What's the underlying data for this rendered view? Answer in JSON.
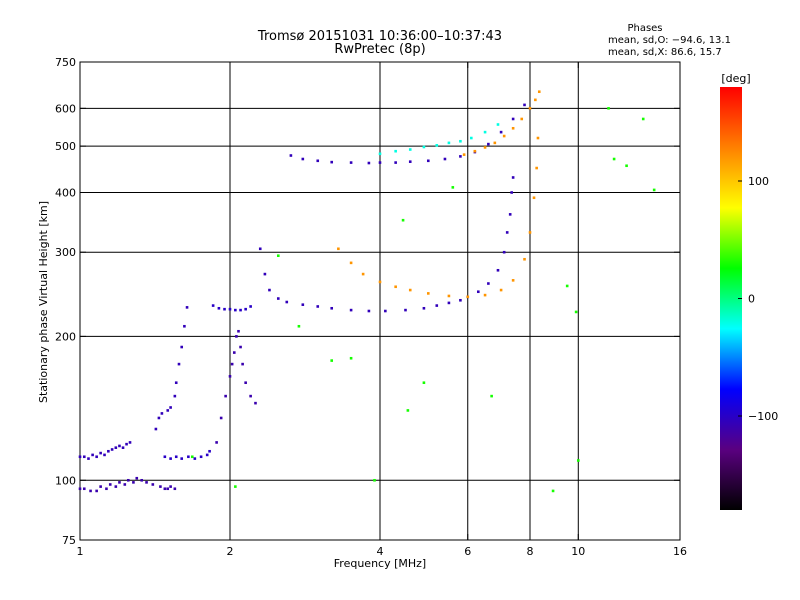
{
  "chart_data": {
    "type": "scatter",
    "title": "Tromsø 20151031 10:36:00–10:37:43",
    "subtitle": "RwPretec (8p)",
    "xlabel": "Frequency [MHz]",
    "ylabel": "Stationary phase Virtual Height [km]",
    "xscale": "log",
    "yscale": "log",
    "xlim": [
      1,
      16
    ],
    "ylim": [
      75,
      750
    ],
    "xticks": [
      1,
      2,
      4,
      6,
      8,
      10,
      16
    ],
    "xtick_labels": [
      "1",
      "2",
      "4",
      "6",
      "8",
      "10",
      "16"
    ],
    "xgrid": [
      2,
      4,
      6,
      8,
      10
    ],
    "yticks": [
      75,
      100,
      200,
      300,
      400,
      500,
      600,
      750
    ],
    "ytick_labels": [
      "75",
      "100",
      "200",
      "300",
      "400",
      "500",
      "600",
      "750"
    ],
    "ygrid": [
      100,
      200,
      300,
      400,
      500,
      600
    ],
    "grid": true,
    "stats": {
      "heading": "Phases",
      "line_o": "mean, sd,O: −94.6, 13.1",
      "line_x": "mean, sd,X:  86.6, 15.7"
    },
    "colorbar": {
      "label": "[deg]",
      "range": [
        -180,
        180
      ],
      "ticks": [
        100,
        0,
        -100
      ],
      "tick_labels": [
        "100",
        "0",
        "−100"
      ],
      "colors": [
        "#000000",
        "#5a0080",
        "#0000ff",
        "#00ffff",
        "#00ff00",
        "#ffff00",
        "#ff8000",
        "#ff0000"
      ]
    },
    "series": [
      {
        "phase": -110,
        "x": [
          1.0,
          1.02,
          1.05,
          1.08,
          1.1,
          1.13,
          1.15,
          1.18,
          1.2,
          1.23,
          1.25,
          1.28,
          1.3,
          1.33,
          1.36,
          1.4,
          1.45,
          1.48,
          1.5,
          1.52,
          1.55
        ],
        "y": [
          96,
          96,
          95,
          95,
          97,
          96,
          98,
          97,
          99,
          98,
          100,
          99,
          101,
          100,
          99,
          98,
          97,
          96,
          96,
          97,
          96
        ]
      },
      {
        "phase": -105,
        "x": [
          1.0,
          1.02,
          1.04,
          1.06,
          1.08,
          1.1,
          1.12,
          1.14,
          1.16,
          1.18,
          1.2,
          1.22,
          1.24,
          1.26
        ],
        "y": [
          112,
          112,
          111,
          113,
          112,
          114,
          113,
          115,
          116,
          117,
          118,
          117,
          119,
          120
        ]
      },
      {
        "phase": -100,
        "x": [
          1.48,
          1.52,
          1.56,
          1.6,
          1.65,
          1.7,
          1.75,
          1.8,
          1.82
        ],
        "y": [
          112,
          111,
          112,
          111,
          112,
          111,
          112,
          113,
          115
        ]
      },
      {
        "phase": -105,
        "x": [
          1.42,
          1.44,
          1.46,
          1.5,
          1.52,
          1.55,
          1.56,
          1.58,
          1.6,
          1.62,
          1.64
        ],
        "y": [
          128,
          135,
          138,
          140,
          142,
          150,
          160,
          175,
          190,
          210,
          230
        ]
      },
      {
        "phase": -110,
        "x": [
          1.88,
          1.92,
          1.96,
          2.0,
          2.02,
          2.04,
          2.06,
          2.08,
          2.1,
          2.12,
          2.15,
          2.2,
          2.25
        ],
        "y": [
          120,
          135,
          150,
          165,
          175,
          185,
          200,
          205,
          190,
          175,
          160,
          150,
          145
        ]
      },
      {
        "phase": -100,
        "x": [
          1.85,
          1.9,
          1.95,
          2.0,
          2.05,
          2.1,
          2.15,
          2.2
        ],
        "y": [
          232,
          229,
          228,
          228,
          227,
          227,
          228,
          231
        ]
      },
      {
        "phase": -105,
        "x": [
          2.3,
          2.35,
          2.4,
          2.5,
          2.6,
          2.8,
          3.0,
          3.2,
          3.5,
          3.8,
          4.1,
          4.5,
          4.9,
          5.2,
          5.5,
          5.8,
          6.0,
          6.3,
          6.6,
          6.9,
          7.1,
          7.2,
          7.3,
          7.35,
          7.4
        ],
        "y": [
          305,
          270,
          250,
          240,
          236,
          233,
          231,
          229,
          227,
          226,
          226,
          227,
          229,
          232,
          235,
          238,
          242,
          248,
          258,
          275,
          300,
          330,
          360,
          400,
          430
        ]
      },
      {
        "phase": 120,
        "x": [
          3.3,
          3.5,
          3.7,
          4.0,
          4.3,
          4.6,
          5.0,
          5.5,
          6.0,
          6.5,
          7.0,
          7.4,
          7.8,
          8.0,
          8.15,
          8.25,
          8.3
        ],
        "y": [
          305,
          285,
          270,
          260,
          254,
          250,
          246,
          243,
          242,
          244,
          250,
          262,
          290,
          330,
          390,
          450,
          520
        ]
      },
      {
        "phase": -105,
        "x": [
          2.65,
          2.8,
          3.0,
          3.2,
          3.5,
          3.8,
          4.0,
          4.3,
          4.6,
          5.0,
          5.4,
          5.8,
          6.2,
          6.6,
          7.0,
          7.4,
          7.8
        ],
        "y": [
          478,
          470,
          466,
          463,
          462,
          461,
          462,
          462,
          464,
          466,
          470,
          476,
          486,
          505,
          535,
          570,
          610
        ]
      },
      {
        "phase": -20,
        "x": [
          4.0,
          4.3,
          4.6,
          4.9,
          5.2,
          5.5,
          5.8,
          6.1,
          6.5,
          6.9
        ],
        "y": [
          482,
          488,
          492,
          498,
          502,
          508,
          512,
          520,
          535,
          555
        ]
      },
      {
        "phase": 120,
        "x": [
          5.9,
          6.2,
          6.5,
          6.8,
          7.1,
          7.4,
          7.7,
          8.0,
          8.2,
          8.35
        ],
        "y": [
          480,
          488,
          497,
          508,
          525,
          545,
          570,
          600,
          625,
          650
        ]
      },
      {
        "phase": 30,
        "x": [
          1.68,
          2.05,
          2.5,
          2.75,
          3.2,
          3.5,
          3.9,
          4.45,
          4.55,
          4.9,
          5.6,
          6.7,
          8.9,
          9.5,
          9.9,
          10.0,
          11.5,
          11.8,
          12.5,
          13.5,
          14.2
        ],
        "y": [
          112,
          97,
          295,
          210,
          178,
          180,
          100,
          350,
          140,
          160,
          410,
          150,
          95,
          255,
          225,
          110,
          600,
          470,
          455,
          570,
          405
        ]
      }
    ]
  }
}
